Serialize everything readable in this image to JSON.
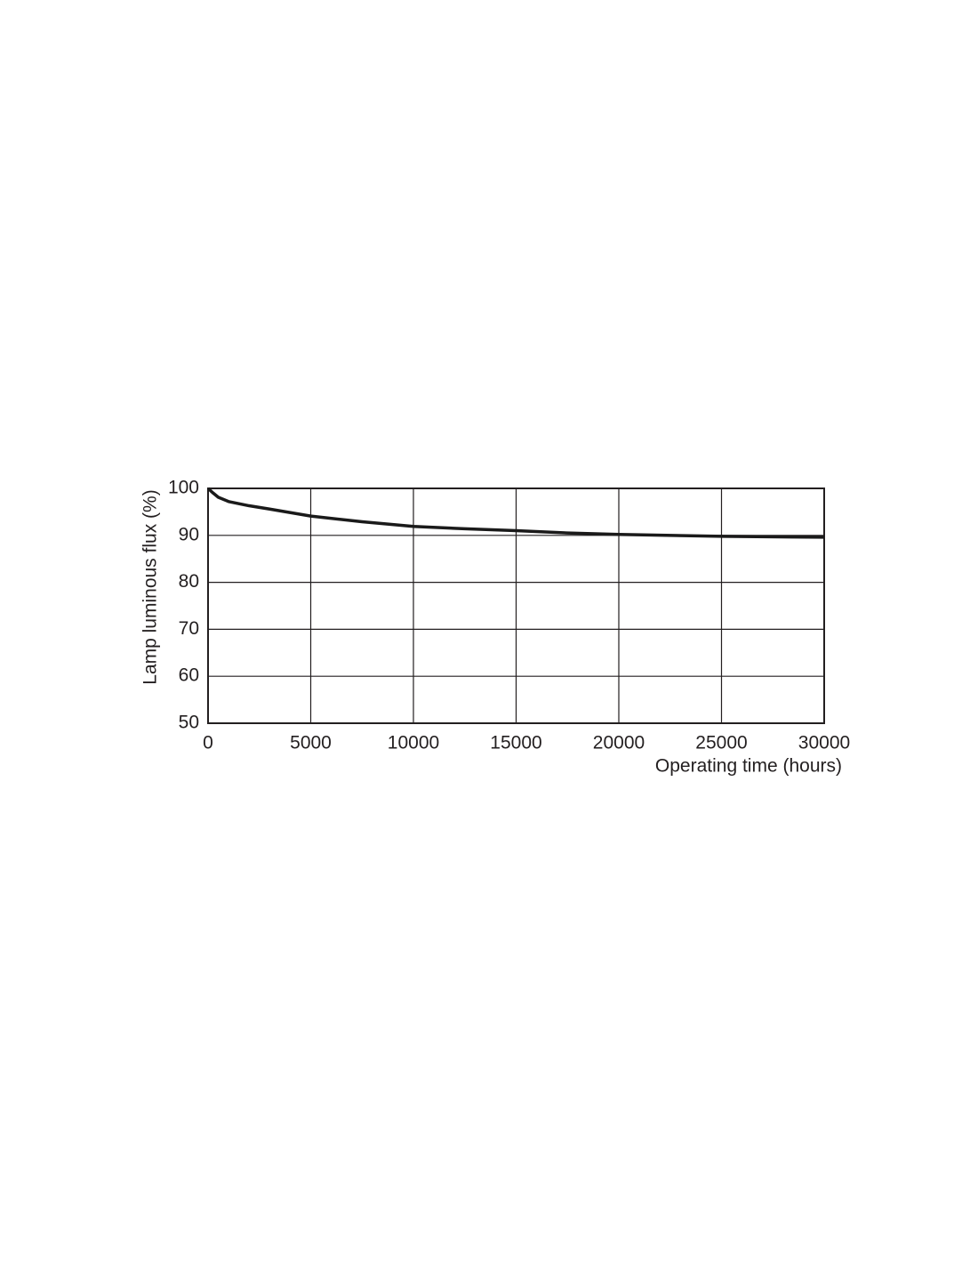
{
  "chart_data": {
    "type": "line",
    "x_label": "Operating time (hours)",
    "y_label": "Lamp luminous flux (%)",
    "x": [
      0,
      250,
      500,
      1000,
      2000,
      3000,
      5000,
      7500,
      10000,
      12500,
      15000,
      17500,
      20000,
      25000,
      30000
    ],
    "series": [
      {
        "color": "#1a1a1a",
        "values": [
          100,
          99,
          98.1,
          97.2,
          96.3,
          95.6,
          94.1,
          92.9,
          91.9,
          91.4,
          91.0,
          90.5,
          90.2,
          89.8,
          89.6
        ]
      }
    ],
    "xlim": [
      0,
      30000
    ],
    "xticks": [
      0,
      5000,
      10000,
      15000,
      20000,
      25000,
      30000
    ],
    "ylim": [
      50,
      100
    ],
    "yticks": [
      50,
      60,
      70,
      80,
      90,
      100
    ],
    "grid": true
  }
}
